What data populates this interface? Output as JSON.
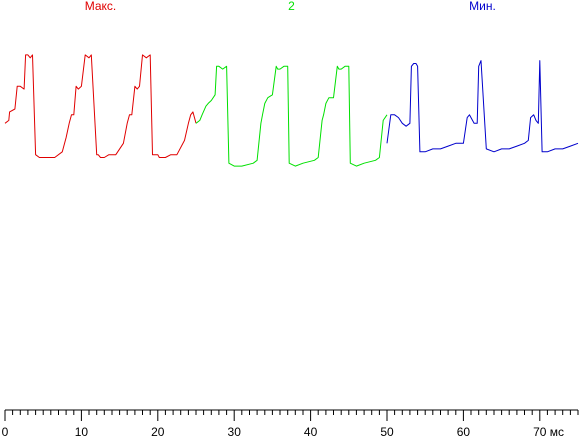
{
  "chart_data": {
    "type": "line",
    "title": "",
    "xlabel": "",
    "ylabel": "",
    "x_unit": "мс",
    "xlim": [
      0,
      75
    ],
    "ylim": [
      0,
      1
    ],
    "x_ticks_major": [
      0,
      10,
      20,
      30,
      40,
      50,
      60,
      70
    ],
    "x_ticks_minor_step": 1,
    "grid": false,
    "legend": "top labels above each series",
    "series": [
      {
        "name": "Макс.",
        "color": "#e00000",
        "x_range": [
          0,
          25
        ],
        "x": [
          0,
          0.5,
          0.6,
          1.3,
          1.6,
          2.0,
          2.5,
          2.7,
          3.0,
          3.3,
          3.6,
          4.0,
          4.5,
          5.6,
          6.5,
          7.5,
          8.0,
          8.4,
          8.7,
          9.0,
          9.3,
          9.6,
          10.0,
          10.5,
          11.0,
          11.3,
          12.0,
          12.2,
          12.5,
          13.0,
          13.6,
          14.5,
          15.5,
          16.0,
          16.3,
          16.6,
          17.0,
          17.3,
          17.6,
          18.0,
          18.5,
          19.0,
          19.3,
          20.0,
          20.2,
          20.5,
          21.0,
          21.7,
          22.5,
          23.5,
          24.0,
          24.3,
          24.6,
          25.0
        ],
        "values": [
          0.62,
          0.63,
          0.66,
          0.67,
          0.75,
          0.75,
          0.74,
          0.86,
          0.86,
          0.85,
          0.86,
          0.51,
          0.5,
          0.5,
          0.5,
          0.52,
          0.57,
          0.62,
          0.65,
          0.65,
          0.75,
          0.74,
          0.75,
          0.86,
          0.85,
          0.86,
          0.51,
          0.51,
          0.5,
          0.5,
          0.51,
          0.51,
          0.55,
          0.62,
          0.65,
          0.65,
          0.75,
          0.74,
          0.75,
          0.86,
          0.85,
          0.86,
          0.51,
          0.51,
          0.5,
          0.5,
          0.5,
          0.51,
          0.51,
          0.56,
          0.62,
          0.65,
          0.66,
          0.62
        ]
      },
      {
        "name": "2",
        "color": "#00e000",
        "x_range": [
          25,
          50
        ],
        "x": [
          25,
          25.5,
          25.8,
          26.3,
          26.6,
          27.0,
          27.5,
          27.7,
          28.0,
          28.5,
          29.0,
          29.3,
          30.0,
          31.0,
          32.5,
          33.0,
          33.5,
          33.7,
          34.0,
          34.4,
          35.0,
          35.5,
          35.7,
          36.0,
          36.5,
          37.0,
          37.2,
          38.0,
          39.0,
          40.5,
          41.0,
          41.5,
          41.7,
          42.0,
          42.4,
          43.0,
          43.5,
          43.7,
          44.0,
          44.5,
          45.0,
          45.2,
          46.0,
          47.0,
          48.5,
          49.0,
          49.5,
          50.0
        ],
        "values": [
          0.62,
          0.63,
          0.65,
          0.68,
          0.69,
          0.7,
          0.72,
          0.82,
          0.82,
          0.81,
          0.82,
          0.48,
          0.47,
          0.47,
          0.48,
          0.49,
          0.62,
          0.65,
          0.69,
          0.71,
          0.72,
          0.82,
          0.81,
          0.81,
          0.82,
          0.82,
          0.48,
          0.47,
          0.48,
          0.49,
          0.5,
          0.63,
          0.65,
          0.69,
          0.71,
          0.71,
          0.82,
          0.81,
          0.81,
          0.82,
          0.82,
          0.48,
          0.47,
          0.48,
          0.49,
          0.5,
          0.63,
          0.65
        ]
      },
      {
        "name": "Мин.",
        "color": "#0000cc",
        "x_range": [
          50,
          75
        ],
        "x": [
          50,
          50.5,
          51.0,
          51.5,
          52.0,
          52.5,
          53.0,
          53.2,
          53.5,
          53.8,
          54.0,
          54.3,
          55.0,
          56.0,
          57.0,
          58.0,
          59.0,
          60.0,
          60.5,
          60.8,
          61.0,
          61.4,
          61.8,
          62.0,
          62.3,
          63.0,
          64.0,
          65.0,
          66.0,
          67.0,
          68.0,
          68.5,
          68.8,
          69.2,
          69.5,
          69.8,
          70.0,
          70.3,
          71.0,
          72.0,
          73.0,
          74.0,
          75.0
        ],
        "values": [
          0.55,
          0.65,
          0.65,
          0.64,
          0.62,
          0.61,
          0.62,
          0.82,
          0.83,
          0.83,
          0.82,
          0.52,
          0.52,
          0.53,
          0.53,
          0.54,
          0.55,
          0.55,
          0.64,
          0.65,
          0.64,
          0.62,
          0.62,
          0.82,
          0.84,
          0.53,
          0.52,
          0.53,
          0.53,
          0.54,
          0.55,
          0.56,
          0.64,
          0.65,
          0.63,
          0.62,
          0.84,
          0.52,
          0.52,
          0.53,
          0.53,
          0.54,
          0.55
        ]
      }
    ]
  }
}
